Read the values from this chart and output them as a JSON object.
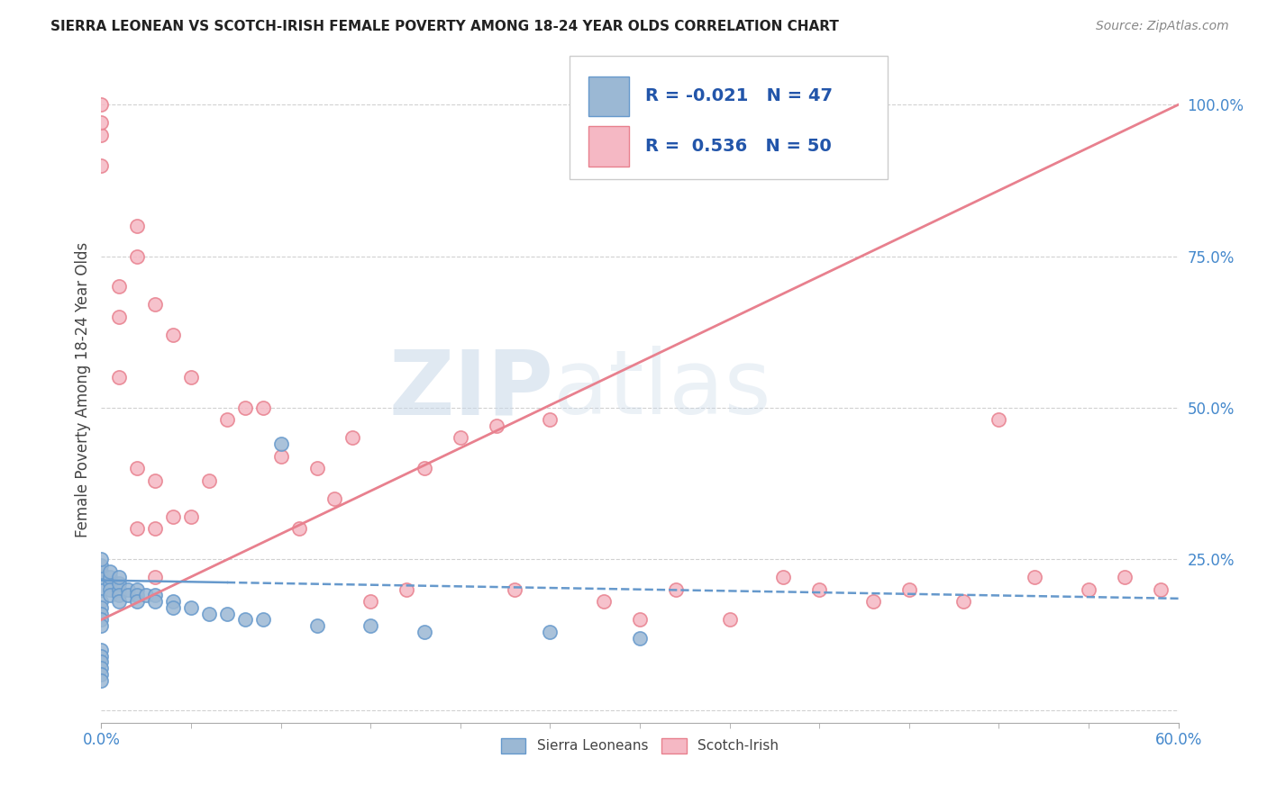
{
  "title": "SIERRA LEONEAN VS SCOTCH-IRISH FEMALE POVERTY AMONG 18-24 YEAR OLDS CORRELATION CHART",
  "source": "Source: ZipAtlas.com",
  "ylabel": "Female Poverty Among 18-24 Year Olds",
  "xlim": [
    0.0,
    0.6
  ],
  "ylim": [
    -0.02,
    1.08
  ],
  "ytick_values": [
    0.0,
    0.25,
    0.5,
    0.75,
    1.0
  ],
  "ytick_labels": [
    "",
    "25.0%",
    "50.0%",
    "75.0%",
    "100.0%"
  ],
  "xtick_values": [
    0.0,
    0.6
  ],
  "xtick_labels": [
    "0.0%",
    "60.0%"
  ],
  "color_sierra_fill": "#9BB8D4",
  "color_sierra_edge": "#6699CC",
  "color_scotch_fill": "#F5B8C4",
  "color_scotch_edge": "#E8808E",
  "color_sierra_line": "#6699CC",
  "color_scotch_line": "#E8808E",
  "legend_r1": "-0.021",
  "legend_n1": "47",
  "legend_r2": "0.536",
  "legend_n2": "50",
  "watermark_zip": "ZIP",
  "watermark_atlas": "atlas",
  "sierra_x": [
    0.0,
    0.0,
    0.0,
    0.0,
    0.0,
    0.0,
    0.0,
    0.0,
    0.0,
    0.0,
    0.005,
    0.005,
    0.005,
    0.005,
    0.005,
    0.01,
    0.01,
    0.01,
    0.01,
    0.01,
    0.015,
    0.015,
    0.02,
    0.02,
    0.02,
    0.025,
    0.03,
    0.03,
    0.04,
    0.04,
    0.05,
    0.06,
    0.07,
    0.08,
    0.09,
    0.1,
    0.12,
    0.15,
    0.18,
    0.25,
    0.3,
    0.0,
    0.0,
    0.0,
    0.0,
    0.0,
    0.0
  ],
  "sierra_y": [
    0.2,
    0.22,
    0.23,
    0.24,
    0.25,
    0.18,
    0.17,
    0.16,
    0.15,
    0.14,
    0.21,
    0.22,
    0.23,
    0.2,
    0.19,
    0.2,
    0.21,
    0.22,
    0.19,
    0.18,
    0.2,
    0.19,
    0.2,
    0.19,
    0.18,
    0.19,
    0.19,
    0.18,
    0.18,
    0.17,
    0.17,
    0.16,
    0.16,
    0.15,
    0.15,
    0.44,
    0.14,
    0.14,
    0.13,
    0.13,
    0.12,
    0.1,
    0.09,
    0.08,
    0.07,
    0.06,
    0.05
  ],
  "scotch_x": [
    0.0,
    0.0,
    0.0,
    0.0,
    0.01,
    0.01,
    0.01,
    0.02,
    0.02,
    0.02,
    0.03,
    0.03,
    0.03,
    0.04,
    0.04,
    0.05,
    0.05,
    0.06,
    0.07,
    0.08,
    0.09,
    0.1,
    0.11,
    0.12,
    0.13,
    0.14,
    0.15,
    0.17,
    0.18,
    0.2,
    0.22,
    0.23,
    0.25,
    0.28,
    0.3,
    0.32,
    0.35,
    0.38,
    0.4,
    0.43,
    0.45,
    0.48,
    0.5,
    0.52,
    0.55,
    0.57,
    0.59,
    0.01,
    0.02,
    0.03
  ],
  "scotch_y": [
    0.9,
    0.95,
    0.97,
    1.0,
    0.55,
    0.65,
    0.7,
    0.4,
    0.75,
    0.8,
    0.3,
    0.38,
    0.67,
    0.32,
    0.62,
    0.32,
    0.55,
    0.38,
    0.48,
    0.5,
    0.5,
    0.42,
    0.3,
    0.4,
    0.35,
    0.45,
    0.18,
    0.2,
    0.4,
    0.45,
    0.47,
    0.2,
    0.48,
    0.18,
    0.15,
    0.2,
    0.15,
    0.22,
    0.2,
    0.18,
    0.2,
    0.18,
    0.48,
    0.22,
    0.2,
    0.22,
    0.2,
    0.2,
    0.3,
    0.22
  ],
  "sierra_trend_x": [
    0.0,
    0.6
  ],
  "sierra_trend_y": [
    0.215,
    0.185
  ],
  "scotch_trend_x": [
    0.0,
    0.6
  ],
  "scotch_trend_y": [
    0.15,
    1.0
  ]
}
